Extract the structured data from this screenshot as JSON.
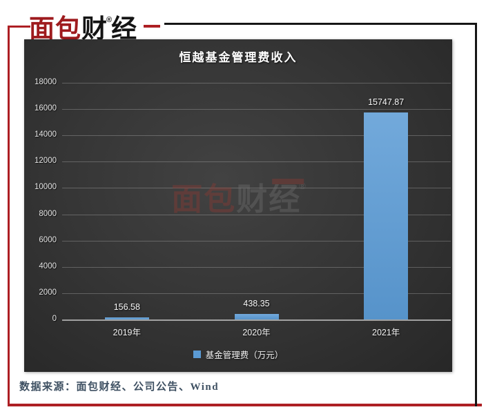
{
  "brand": {
    "logo_left": "面包",
    "logo_mid": "财",
    "logo_right": "经",
    "registered_mark": "®"
  },
  "chart_data": {
    "type": "bar",
    "title": "恒越基金管理费收入",
    "categories": [
      "2019年",
      "2020年",
      "2021年"
    ],
    "values": [
      156.58,
      438.35,
      15747.87
    ],
    "value_labels": [
      "156.58",
      "438.35",
      "15747.87"
    ],
    "ylim": [
      0,
      18000
    ],
    "ytick_step": 2000,
    "grid": true,
    "legend_position": "bottom",
    "legend": [
      {
        "label": "基金管理费（万元）",
        "color": "#5B9BD5"
      }
    ],
    "bar_color": "#5B9BD5",
    "background_theme": "dark"
  },
  "watermark": {
    "text_left": "面包",
    "text_right": "财经",
    "registered_mark": "®"
  },
  "footer": {
    "source_text": "数据来源：面包财经、公司公告、Wind"
  },
  "colors": {
    "frame_red": "#AD1F23",
    "frame_black": "#151515",
    "bar_blue": "#5B9BD5",
    "source_text": "#3E5062"
  }
}
